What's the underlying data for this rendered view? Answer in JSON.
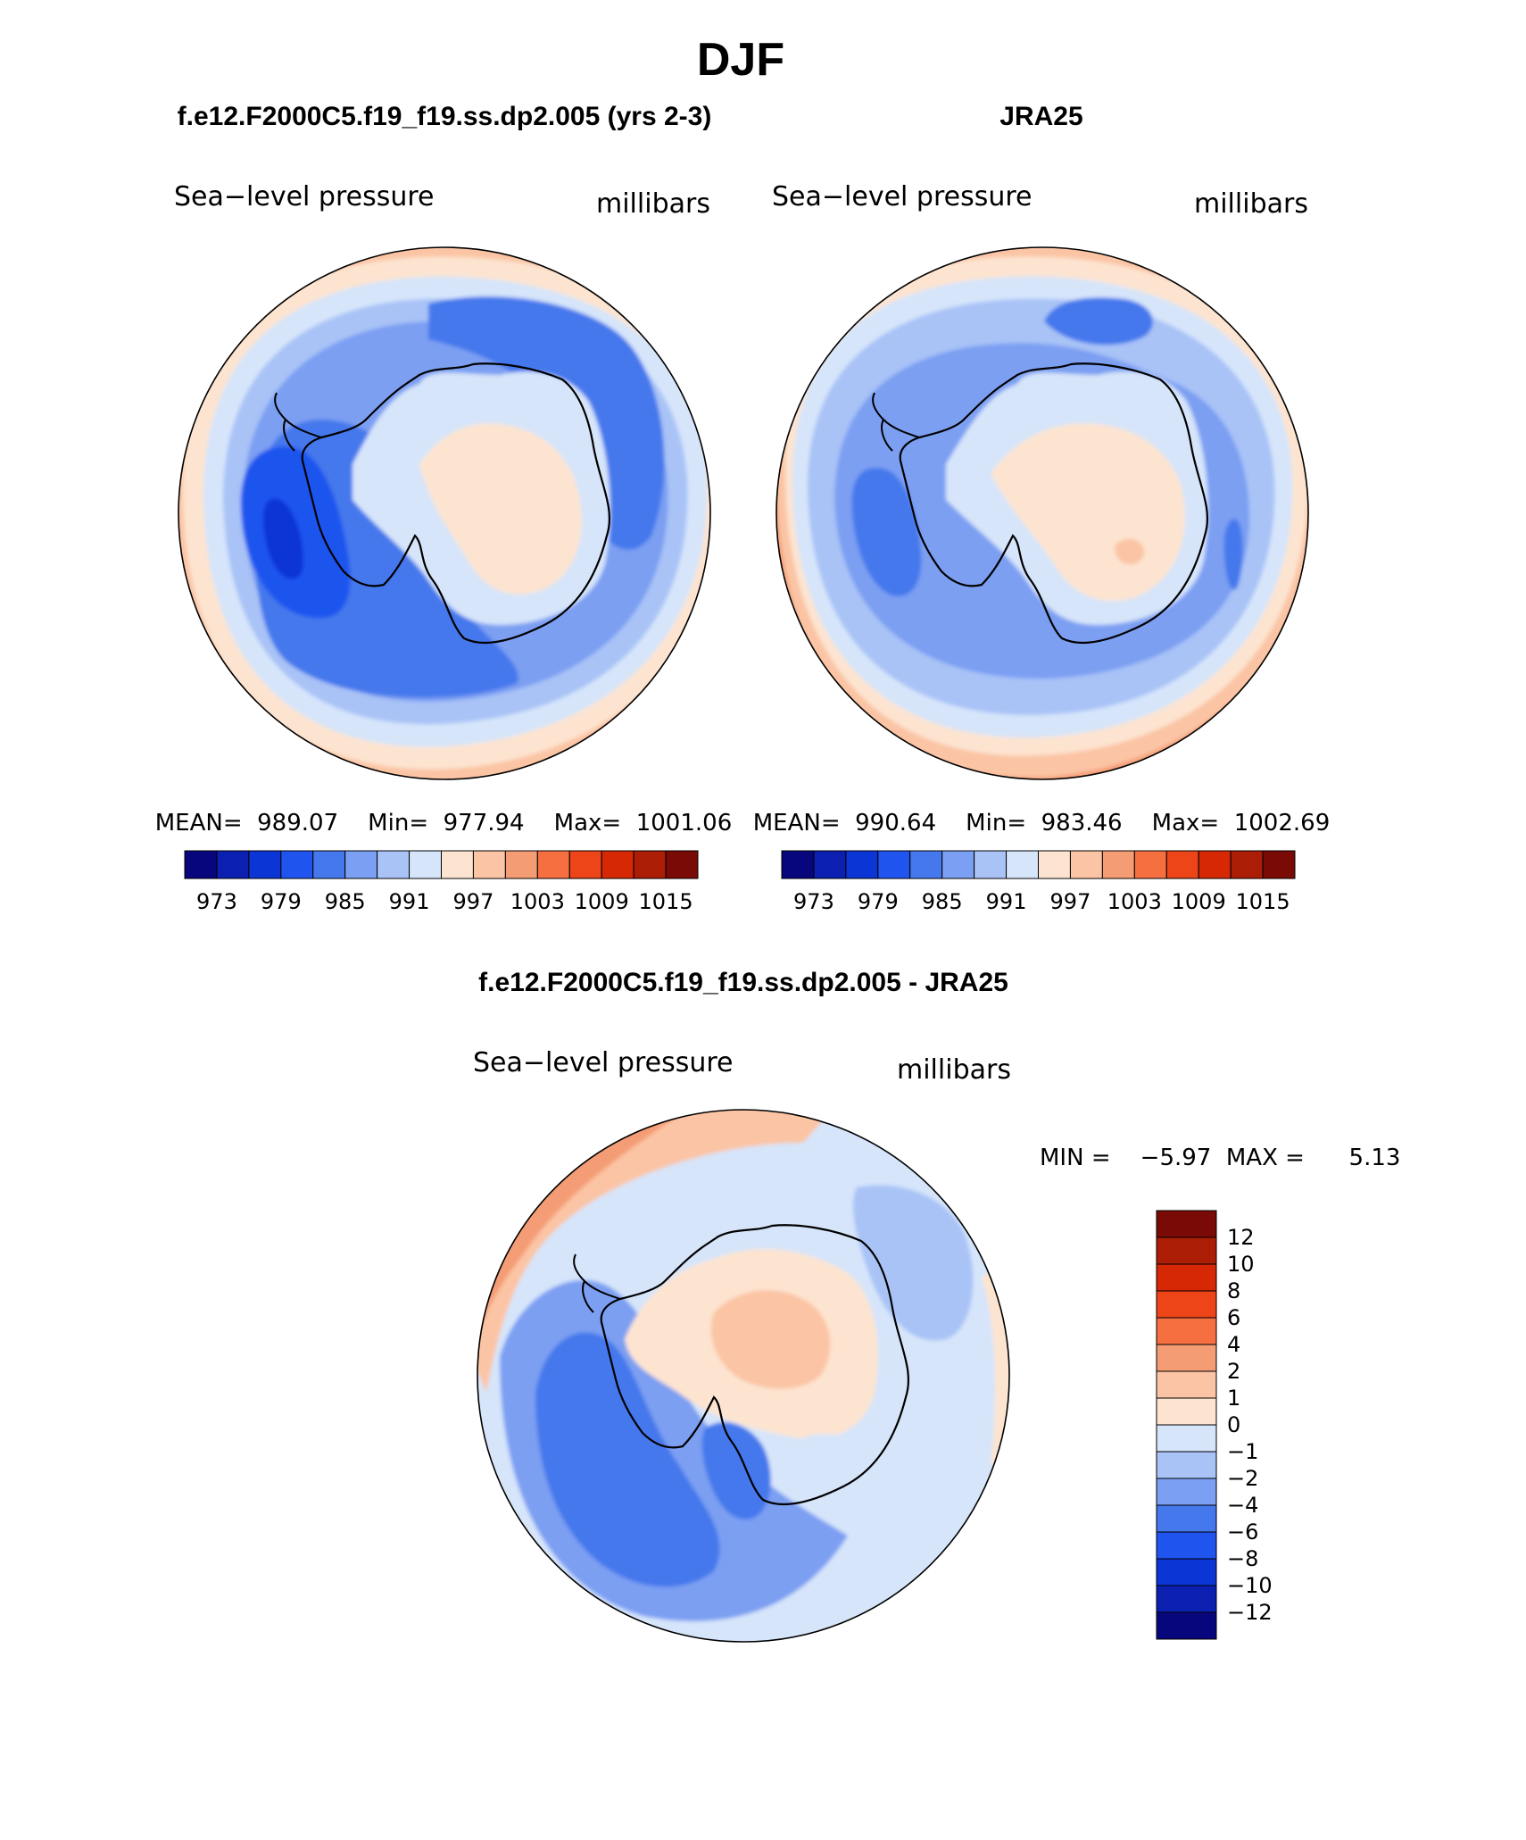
{
  "figure": {
    "title": "DJF"
  },
  "chart_data": [
    {
      "id": "model",
      "type": "heatmap",
      "title": "f.e12.F2000C5.f19_f19.ss.dp2.005 (yrs 2-3)",
      "field": "Sea−level pressure",
      "units": "millibars",
      "projection": "south-polar-stereographic",
      "region": "Antarctica",
      "stats": {
        "mean": 989.07,
        "min": 977.94,
        "max": 1001.06
      },
      "stats_text": "MEAN=  989.07    Min=  977.94    Max=  1001.06",
      "colorbar": {
        "orientation": "horizontal",
        "levels": [
          973,
          976,
          979,
          982,
          985,
          988,
          991,
          994,
          997,
          1000,
          1003,
          1006,
          1009,
          1012,
          1015
        ],
        "tick_labels": [
          "973",
          "979",
          "985",
          "991",
          "997",
          "1003",
          "1009",
          "1015"
        ],
        "colors": [
          "#08067c",
          "#0b1fb0",
          "#0c35d6",
          "#1f55ee",
          "#4578ec",
          "#7b9ff2",
          "#a9c3f7",
          "#d6e5fa",
          "#fde4d0",
          "#fbc4a4",
          "#f49c74",
          "#f56f40",
          "#ed4517",
          "#d62805",
          "#ac1d05",
          "#7a0a05"
        ]
      }
    },
    {
      "id": "obs",
      "type": "heatmap",
      "title": "JRA25",
      "field": "Sea−level pressure",
      "units": "millibars",
      "projection": "south-polar-stereographic",
      "region": "Antarctica",
      "stats": {
        "mean": 990.64,
        "min": 983.46,
        "max": 1002.69
      },
      "stats_text": "MEAN=  990.64    Min=  983.46    Max=  1002.69",
      "colorbar": {
        "orientation": "horizontal",
        "levels": [
          973,
          976,
          979,
          982,
          985,
          988,
          991,
          994,
          997,
          1000,
          1003,
          1006,
          1009,
          1012,
          1015
        ],
        "tick_labels": [
          "973",
          "979",
          "985",
          "991",
          "997",
          "1003",
          "1009",
          "1015"
        ],
        "colors": [
          "#08067c",
          "#0b1fb0",
          "#0c35d6",
          "#1f55ee",
          "#4578ec",
          "#7b9ff2",
          "#a9c3f7",
          "#d6e5fa",
          "#fde4d0",
          "#fbc4a4",
          "#f49c74",
          "#f56f40",
          "#ed4517",
          "#d62805",
          "#ac1d05",
          "#7a0a05"
        ]
      }
    },
    {
      "id": "diff",
      "type": "heatmap",
      "title": "f.e12.F2000C5.f19_f19.ss.dp2.005 - JRA25",
      "field": "Sea−level pressure",
      "units": "millibars",
      "projection": "south-polar-stereographic",
      "region": "Antarctica",
      "stats": {
        "min": -5.97,
        "max": 5.13
      },
      "stats_text": "MIN =    −5.97  MAX =      5.13",
      "colorbar": {
        "orientation": "vertical",
        "levels": [
          12,
          10,
          8,
          6,
          4,
          2,
          1,
          0,
          -1,
          -2,
          -4,
          -6,
          -8,
          -10,
          -12
        ],
        "tick_labels": [
          "12",
          "10",
          "8",
          "6",
          "4",
          "2",
          "1",
          "0",
          "−1",
          "−2",
          "−4",
          "−6",
          "−8",
          "−10",
          "−12"
        ],
        "colors_top_to_bottom": [
          "#7a0a05",
          "#ac1d05",
          "#d62805",
          "#ed4517",
          "#f56f40",
          "#f49c74",
          "#fbc4a4",
          "#fde4d0",
          "#d6e5fa",
          "#a9c3f7",
          "#7b9ff2",
          "#4578ec",
          "#1f55ee",
          "#0c35d6",
          "#0b1fb0",
          "#08067c"
        ]
      }
    }
  ],
  "field_colors": {
    "coast": "#000000",
    "rim": "#000000",
    "background": "#ffffff"
  }
}
